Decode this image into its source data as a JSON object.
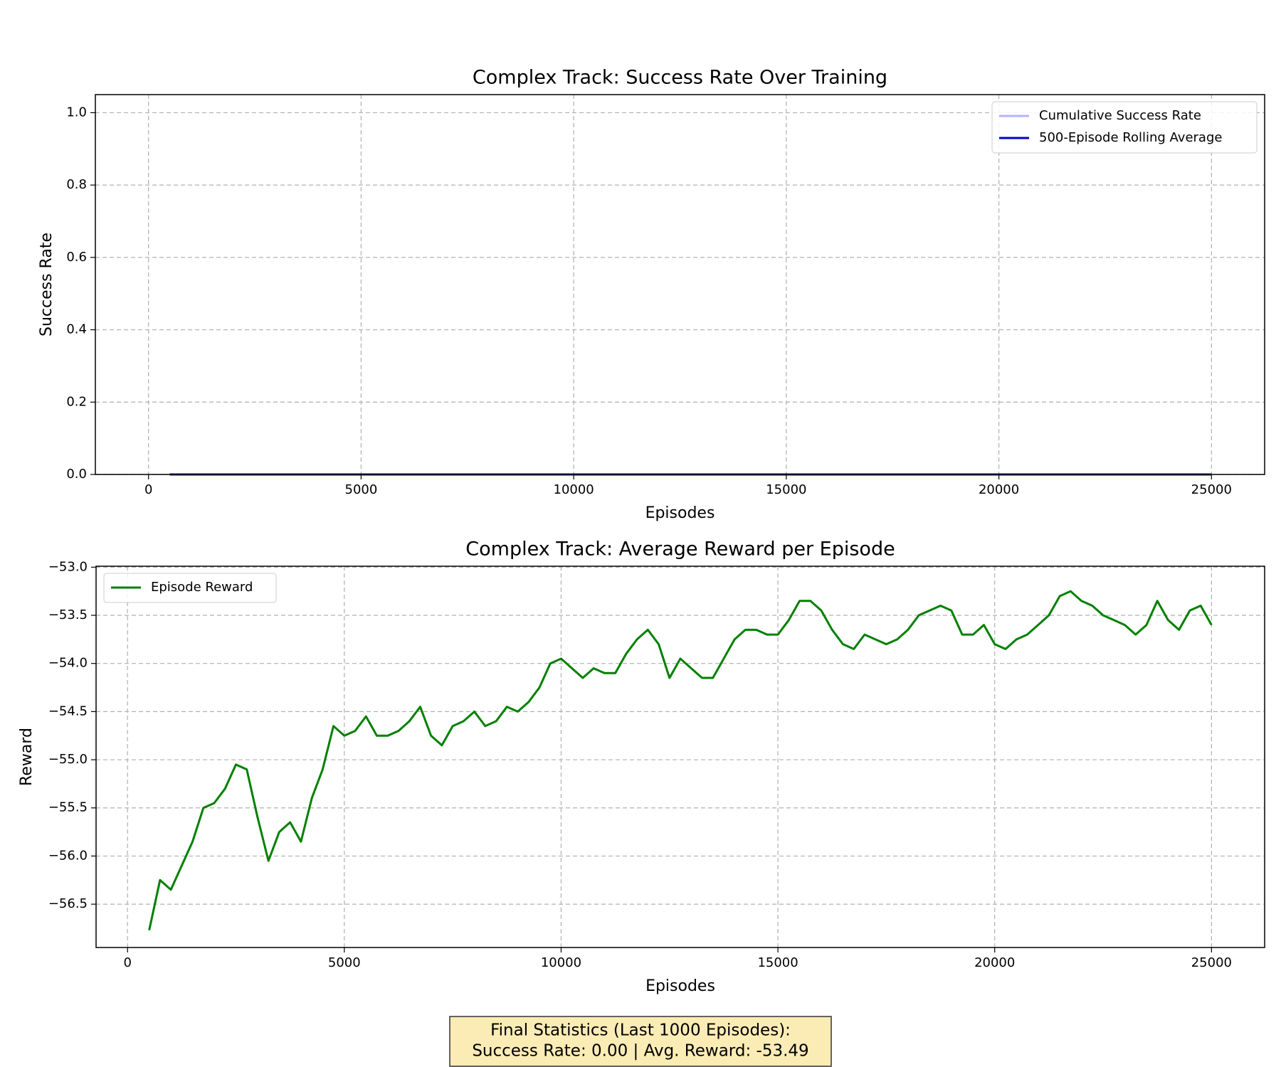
{
  "chart_data": [
    {
      "type": "line",
      "title": "Complex Track: Success Rate Over Training",
      "xlabel": "Episodes",
      "ylabel": "Success Rate",
      "x": [
        500,
        25000
      ],
      "series": [
        {
          "name": "Cumulative Success Rate",
          "color": "#b3b3ff",
          "values": [
            0,
            0
          ]
        },
        {
          "name": "500-Episode Rolling Average",
          "color": "#0000cd",
          "values": [
            0,
            0
          ]
        }
      ],
      "xlim": [
        -1250,
        26250
      ],
      "ylim": [
        0,
        1.05
      ],
      "xticks": [
        0,
        5000,
        10000,
        15000,
        20000,
        25000
      ],
      "yticks": [
        {
          "value": 0,
          "label": "0.0"
        },
        {
          "value": 0.2,
          "label": "0.2"
        },
        {
          "value": 0.4,
          "label": "0.4"
        },
        {
          "value": 0.6,
          "label": "0.6"
        },
        {
          "value": 0.8,
          "label": "0.8"
        },
        {
          "value": 1,
          "label": "1.0"
        }
      ],
      "grid": true,
      "legend": "upper right"
    },
    {
      "type": "line",
      "title": "Complex Track: Average Reward per Episode",
      "xlabel": "Episodes",
      "ylabel": "Reward",
      "x": [
        500,
        750,
        1000,
        1250,
        1500,
        1750,
        2000,
        2250,
        2500,
        2750,
        3000,
        3250,
        3500,
        3750,
        4000,
        4250,
        4500,
        4750,
        5000,
        5250,
        5500,
        5750,
        6000,
        6250,
        6500,
        6750,
        7000,
        7250,
        7500,
        7750,
        8000,
        8250,
        8500,
        8750,
        9000,
        9250,
        9500,
        9750,
        10000,
        10250,
        10500,
        10750,
        11000,
        11250,
        11500,
        11750,
        12000,
        12250,
        12500,
        12750,
        13000,
        13250,
        13500,
        13750,
        14000,
        14250,
        14500,
        14750,
        15000,
        15250,
        15500,
        15750,
        16000,
        16250,
        16500,
        16750,
        17000,
        17250,
        17500,
        17750,
        18000,
        18250,
        18500,
        18750,
        19000,
        19250,
        19500,
        19750,
        20000,
        20250,
        20500,
        20750,
        21000,
        21250,
        21500,
        21750,
        22000,
        22250,
        22500,
        22750,
        23000,
        23250,
        23500,
        23750,
        24000,
        24250,
        24500,
        24750,
        25000
      ],
      "series": [
        {
          "name": "Episode Reward",
          "color": "#008000",
          "values": [
            -56.77,
            -56.25,
            -56.35,
            -56.1,
            -55.85,
            -55.5,
            -55.45,
            -55.3,
            -55.05,
            -55.1,
            -55.6,
            -56.05,
            -55.75,
            -55.65,
            -55.85,
            -55.4,
            -55.1,
            -54.65,
            -54.75,
            -54.7,
            -54.55,
            -54.75,
            -54.75,
            -54.7,
            -54.6,
            -54.45,
            -54.75,
            -54.85,
            -54.65,
            -54.6,
            -54.5,
            -54.65,
            -54.6,
            -54.45,
            -54.5,
            -54.4,
            -54.25,
            -54.0,
            -53.95,
            -54.05,
            -54.15,
            -54.05,
            -54.1,
            -54.1,
            -53.9,
            -53.75,
            -53.65,
            -53.8,
            -54.15,
            -53.95,
            -54.05,
            -54.15,
            -54.15,
            -53.95,
            -53.75,
            -53.65,
            -53.65,
            -53.7,
            -53.7,
            -53.55,
            -53.35,
            -53.35,
            -53.45,
            -53.65,
            -53.8,
            -53.85,
            -53.7,
            -53.75,
            -53.8,
            -53.75,
            -53.65,
            -53.5,
            -53.45,
            -53.4,
            -53.45,
            -53.7,
            -53.7,
            -53.6,
            -53.8,
            -53.85,
            -53.75,
            -53.7,
            -53.6,
            -53.5,
            -53.3,
            -53.25,
            -53.35,
            -53.4,
            -53.5,
            -53.55,
            -53.6,
            -53.7,
            -53.6,
            -53.35,
            -53.55,
            -53.65,
            -53.45,
            -53.4,
            -53.6
          ]
        }
      ],
      "xlim": [
        -725,
        26225
      ],
      "ylim": [
        -56.95,
        -52.99
      ],
      "xticks": [
        0,
        5000,
        10000,
        15000,
        20000,
        25000
      ],
      "yticks": [
        {
          "value": -56.5,
          "label": "−56.5"
        },
        {
          "value": -56,
          "label": "−56.0"
        },
        {
          "value": -55.5,
          "label": "−55.5"
        },
        {
          "value": -55,
          "label": "−55.0"
        },
        {
          "value": -54.5,
          "label": "−54.5"
        },
        {
          "value": -54,
          "label": "−54.0"
        },
        {
          "value": -53.5,
          "label": "−53.5"
        },
        {
          "value": -53,
          "label": "−53.0"
        }
      ],
      "grid": true,
      "legend": "upper left",
      "annotation": [
        "Final Statistics (Last 1000 Episodes):",
        "Success Rate: 0.00 | Avg. Reward: -53.49"
      ]
    }
  ]
}
